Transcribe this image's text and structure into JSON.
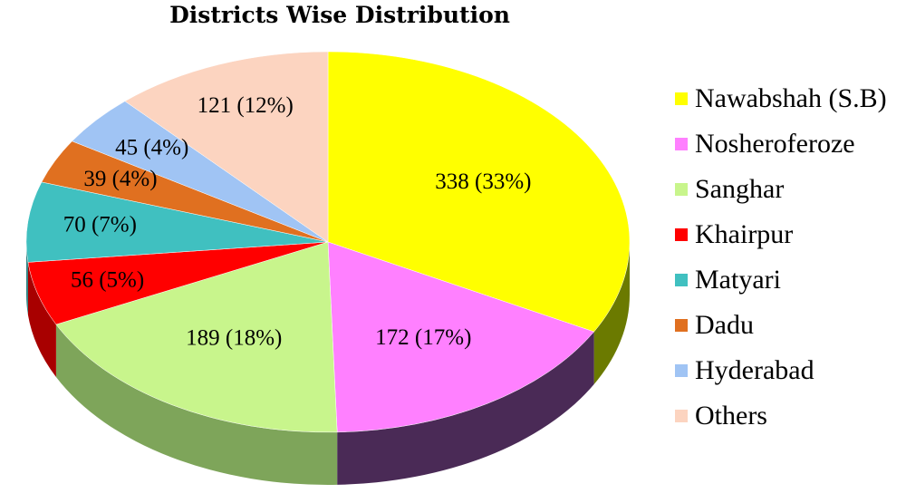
{
  "chart_data": {
    "type": "pie",
    "title": "Districts Wise Distribution",
    "legend_position": "right",
    "slices": [
      {
        "name": "Nawabshah (S.B)",
        "value": 338,
        "label": "338 (33%)",
        "color": "#ffff00",
        "side_color": "#6b7a00"
      },
      {
        "name": "Nosheroferoze",
        "value": 172,
        "label": "172 (17%)",
        "color": "#ff80ff",
        "side_color": "#4a2a56"
      },
      {
        "name": "Sanghar",
        "value": 189,
        "label": "189 (18%)",
        "color": "#c8f58c",
        "side_color": "#7ea55a"
      },
      {
        "name": "Khairpur",
        "value": 56,
        "label": "56 (5%)",
        "color": "#ff0000",
        "side_color": "#a80000"
      },
      {
        "name": "Matyari",
        "value": 70,
        "label": "70 (7%)",
        "color": "#40c0c0",
        "side_color": "#2a8080"
      },
      {
        "name": "Dadu",
        "value": 39,
        "label": "39 (4%)",
        "color": "#e07020",
        "side_color": "#9a4a10"
      },
      {
        "name": "Hyderabad",
        "value": 45,
        "label": "45 (4%)",
        "color": "#a0c4f4",
        "side_color": "#6a8ab0"
      },
      {
        "name": "Others",
        "value": 121,
        "label": "121 (12%)",
        "color": "#fcd4c0",
        "side_color": "#b89888"
      }
    ]
  }
}
